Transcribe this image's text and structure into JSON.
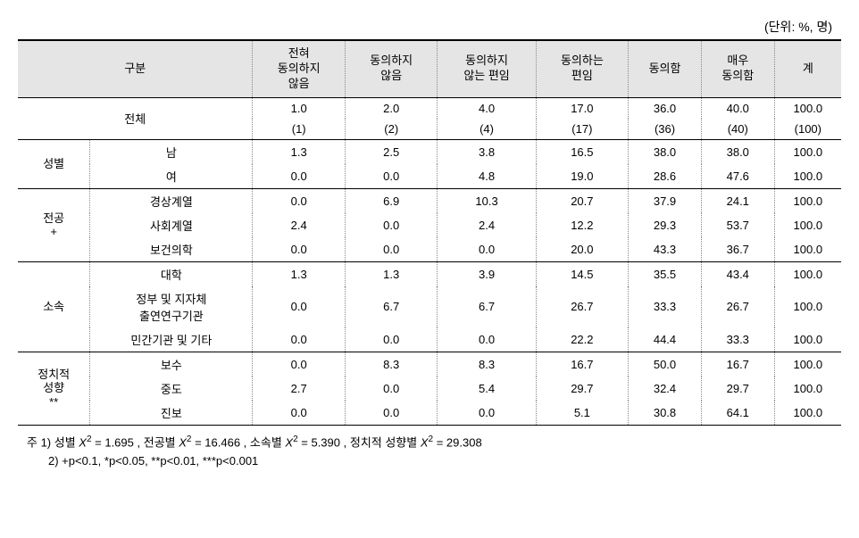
{
  "unit_label": "(단위: %, 명)",
  "headers": {
    "category": "구분",
    "col1": "전혀\n동의하지\n않음",
    "col2": "동의하지\n않음",
    "col3": "동의하지\n않는 편임",
    "col4": "동의하는\n편임",
    "col5": "동의함",
    "col6": "매우\n동의함",
    "total": "계"
  },
  "total_row": {
    "label": "전체",
    "pct": [
      "1.0",
      "2.0",
      "4.0",
      "17.0",
      "36.0",
      "40.0",
      "100.0"
    ],
    "count": [
      "(1)",
      "(2)",
      "(4)",
      "(17)",
      "(36)",
      "(40)",
      "(100)"
    ]
  },
  "groups": [
    {
      "group_label": "성별",
      "rows": [
        {
          "label": "남",
          "v": [
            "1.3",
            "2.5",
            "3.8",
            "16.5",
            "38.0",
            "38.0",
            "100.0"
          ]
        },
        {
          "label": "여",
          "v": [
            "0.0",
            "0.0",
            "4.8",
            "19.0",
            "28.6",
            "47.6",
            "100.0"
          ]
        }
      ]
    },
    {
      "group_label": "전공\n+",
      "rows": [
        {
          "label": "경상계열",
          "v": [
            "0.0",
            "6.9",
            "10.3",
            "20.7",
            "37.9",
            "24.1",
            "100.0"
          ]
        },
        {
          "label": "사회계열",
          "v": [
            "2.4",
            "0.0",
            "2.4",
            "12.2",
            "29.3",
            "53.7",
            "100.0"
          ]
        },
        {
          "label": "보건의학",
          "v": [
            "0.0",
            "0.0",
            "0.0",
            "20.0",
            "43.3",
            "36.7",
            "100.0"
          ]
        }
      ]
    },
    {
      "group_label": "소속",
      "rows": [
        {
          "label": "대학",
          "v": [
            "1.3",
            "1.3",
            "3.9",
            "14.5",
            "35.5",
            "43.4",
            "100.0"
          ]
        },
        {
          "label": "정부 및 지자체\n출연연구기관",
          "v": [
            "0.0",
            "6.7",
            "6.7",
            "26.7",
            "33.3",
            "26.7",
            "100.0"
          ]
        },
        {
          "label": "민간기관 및 기타",
          "v": [
            "0.0",
            "0.0",
            "0.0",
            "22.2",
            "44.4",
            "33.3",
            "100.0"
          ]
        }
      ]
    },
    {
      "group_label": "정치적\n성향\n**",
      "rows": [
        {
          "label": "보수",
          "v": [
            "0.0",
            "8.3",
            "8.3",
            "16.7",
            "50.0",
            "16.7",
            "100.0"
          ]
        },
        {
          "label": "중도",
          "v": [
            "2.7",
            "0.0",
            "5.4",
            "29.7",
            "32.4",
            "29.7",
            "100.0"
          ]
        },
        {
          "label": "진보",
          "v": [
            "0.0",
            "0.0",
            "0.0",
            "5.1",
            "30.8",
            "64.1",
            "100.0"
          ]
        }
      ]
    }
  ],
  "footnotes": {
    "note1_prefix": "주 1) 성별 ",
    "x2_label": "X",
    "sup2": "2",
    "eq": " = ",
    "val1": "1.695",
    "sep": " , ",
    "note1_b": "전공별 ",
    "val2": "16.466",
    "note1_c": "소속별 ",
    "val3": "5.390",
    "note1_d": "정치적 성향별 ",
    "val4": "29.308",
    "note2": "2) +p<0.1, *p<0.05, **p<0.01, ***p<0.001"
  }
}
